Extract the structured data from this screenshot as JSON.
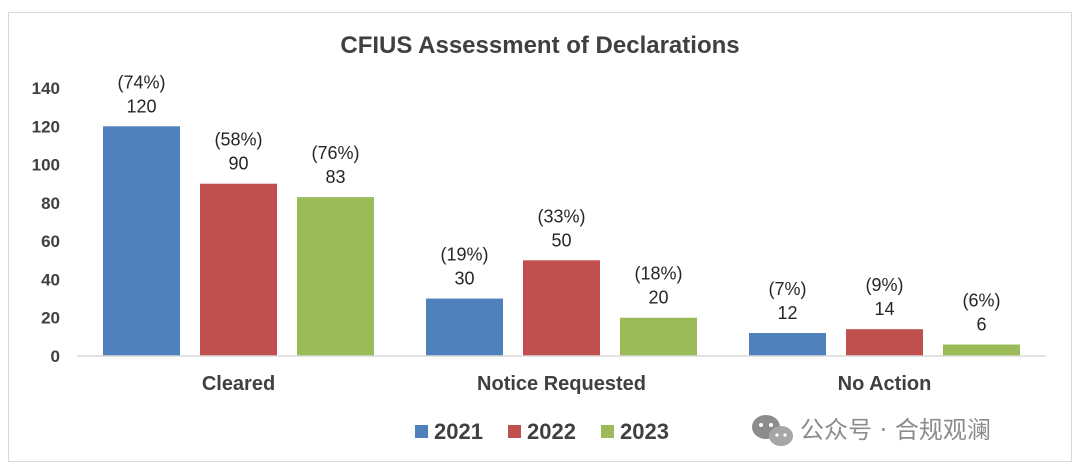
{
  "chart_data": {
    "type": "bar",
    "title": "CFIUS Assessment of Declarations",
    "categories": [
      "Cleared",
      "Notice Requested",
      "No Action"
    ],
    "series": [
      {
        "name": "2021",
        "color": "#4f81bd",
        "values": [
          120,
          30,
          12
        ],
        "percent_labels": [
          "(74%)",
          "(19%)",
          "(7%)"
        ]
      },
      {
        "name": "2022",
        "color": "#c0504d",
        "values": [
          90,
          50,
          14
        ],
        "percent_labels": [
          "(58%)",
          "(33%)",
          "(9%)"
        ]
      },
      {
        "name": "2023",
        "color": "#9bbb59",
        "values": [
          83,
          20,
          6
        ],
        "percent_labels": [
          "(76%)",
          "(18%)",
          "(6%)"
        ]
      }
    ],
    "ylim": [
      0,
      140
    ],
    "yticks": [
      0,
      20,
      40,
      60,
      80,
      100,
      120,
      140
    ],
    "xlabel": "",
    "ylabel": "",
    "grid": false,
    "legend": "bottom-center"
  },
  "watermark": {
    "text": "公众号 · 合规观澜",
    "icon": "wechat-icon"
  }
}
